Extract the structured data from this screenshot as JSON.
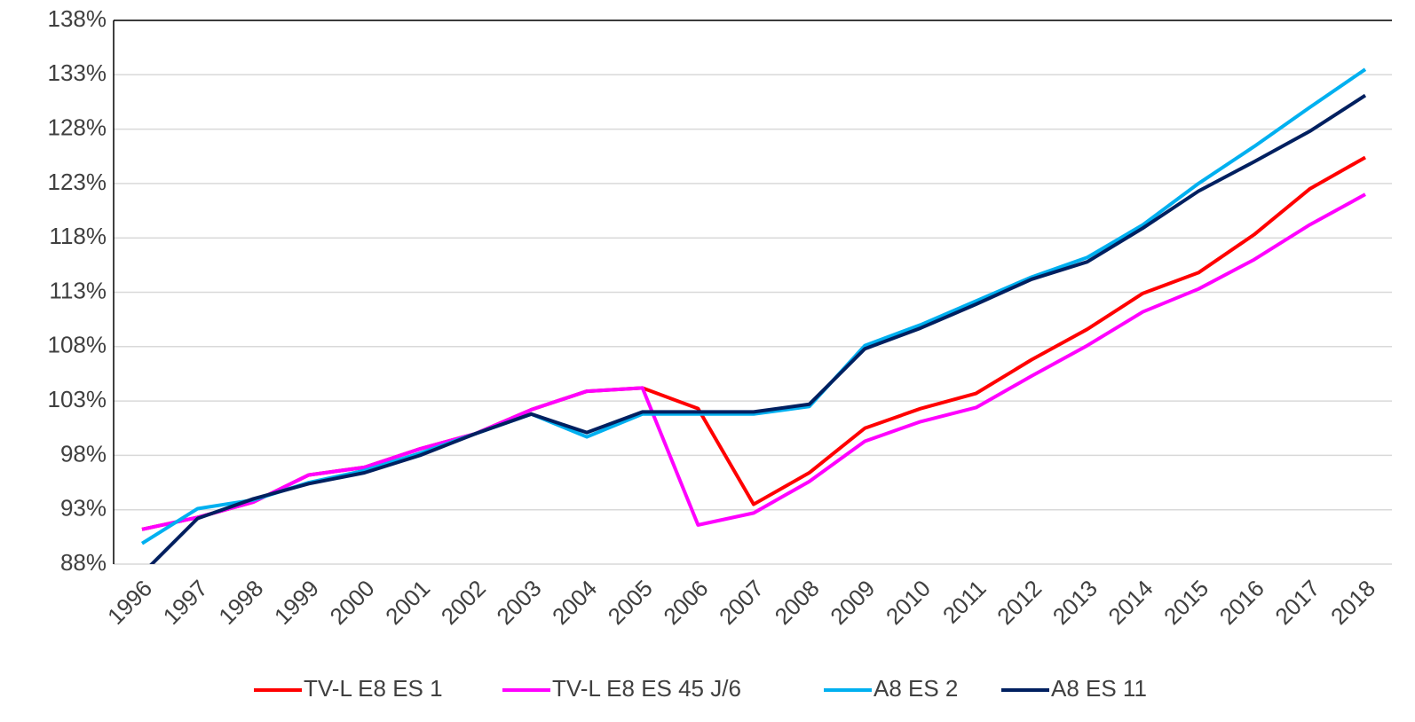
{
  "chart_data": {
    "type": "line",
    "categories": [
      "1996",
      "1997",
      "1998",
      "1999",
      "2000",
      "2001",
      "2002",
      "2003",
      "2004",
      "2005",
      "2006",
      "2007",
      "2008",
      "2009",
      "2010",
      "2011",
      "2012",
      "2013",
      "2014",
      "2015",
      "2016",
      "2017",
      "2018"
    ],
    "series": [
      {
        "name": "TV-L E8 ES 1",
        "color": "#ff0000",
        "values": [
          91.2,
          92.3,
          93.7,
          96.2,
          96.9,
          98.6,
          100,
          102.2,
          103.9,
          104.2,
          102.3,
          93.5,
          96.4,
          100.5,
          102.3,
          103.7,
          106.8,
          109.6,
          112.9,
          114.8,
          118.3,
          122.5,
          125.4
        ]
      },
      {
        "name": "TV-L E8 ES 45 J/6",
        "color": "#ff00ff",
        "values": [
          91.2,
          92.3,
          93.7,
          96.2,
          96.9,
          98.6,
          100,
          102.2,
          103.9,
          104.2,
          91.6,
          92.7,
          95.6,
          99.3,
          101.1,
          102.4,
          105.3,
          108.1,
          111.2,
          113.3,
          116,
          119.2,
          122
        ]
      },
      {
        "name": "A8 ES 2",
        "color": "#00b0f0",
        "values": [
          89.9,
          93.1,
          93.9,
          95.5,
          96.6,
          98.2,
          100,
          101.8,
          99.7,
          101.8,
          101.8,
          101.8,
          102.5,
          108.1,
          110,
          112.2,
          114.4,
          116.2,
          119.2,
          123,
          126.4,
          130,
          133.5
        ]
      },
      {
        "name": "A8 ES 11",
        "color": "#002060",
        "values": [
          87.1,
          92.2,
          94,
          95.4,
          96.4,
          98,
          100,
          101.8,
          100.1,
          102,
          102,
          102,
          102.7,
          107.8,
          109.7,
          111.9,
          114.2,
          115.8,
          118.9,
          122.3,
          125,
          127.8,
          131.1
        ]
      }
    ],
    "ylim": [
      88,
      138
    ],
    "yticks": [
      {
        "value": 88,
        "label": "88%"
      },
      {
        "value": 93,
        "label": "93%"
      },
      {
        "value": 98,
        "label": "98%"
      },
      {
        "value": 103,
        "label": "103%"
      },
      {
        "value": 108,
        "label": "108%"
      },
      {
        "value": 113,
        "label": "113%"
      },
      {
        "value": 118,
        "label": "118%"
      },
      {
        "value": 123,
        "label": "123%"
      },
      {
        "value": 128,
        "label": "128%"
      },
      {
        "value": 133,
        "label": "133%"
      },
      {
        "value": 138,
        "label": "138%"
      }
    ],
    "grid": true,
    "legend": "bottom"
  }
}
